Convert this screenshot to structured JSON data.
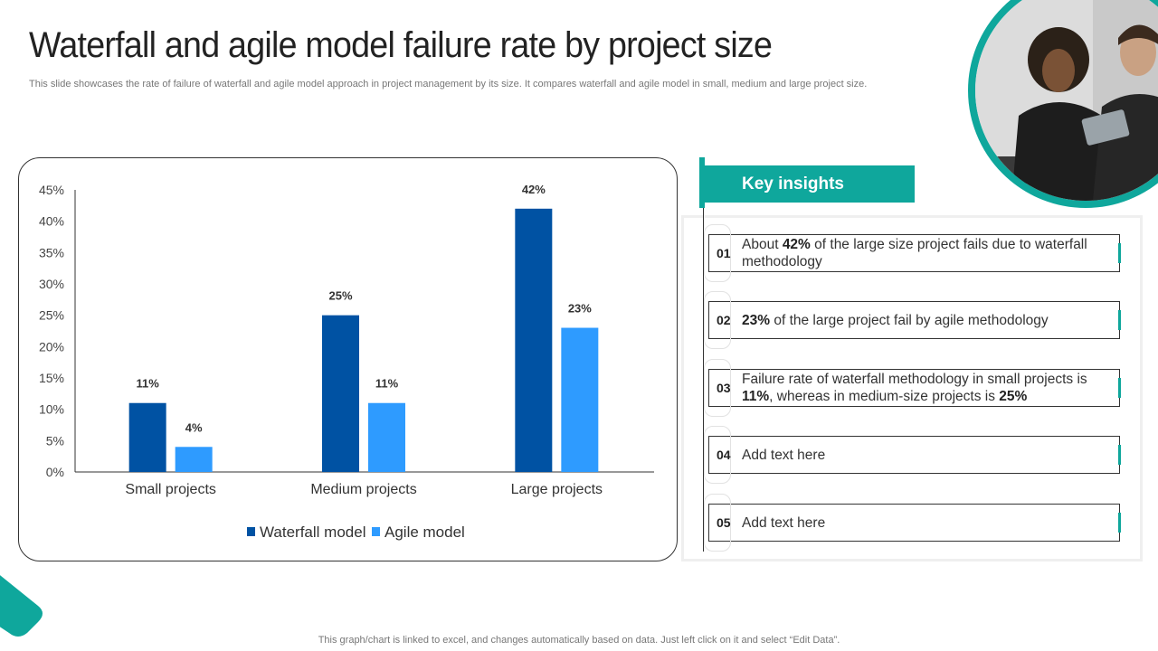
{
  "title": "Waterfall and agile model failure rate by project size",
  "subtitle": "This slide showcases the rate of failure of waterfall and agile model approach in project management by its size. It compares waterfall and agile model in small, medium and large project size.",
  "footer": "This graph/chart is linked to excel,  and changes automatically based on data. Just left click on it and select “Edit Data”.",
  "colors": {
    "accent": "#0fa79c",
    "waterfall": "#0052a3",
    "agile": "#2e9bff"
  },
  "chart_data": {
    "type": "bar",
    "title": "",
    "xlabel": "",
    "ylabel": "",
    "categories": [
      "Small projects",
      "Medium projects",
      "Large projects"
    ],
    "series": [
      {
        "name": "Waterfall model",
        "values": [
          11,
          25,
          42
        ],
        "labels": [
          "11%",
          "25%",
          "42%"
        ]
      },
      {
        "name": "Agile model",
        "values": [
          4,
          11,
          23
        ],
        "labels": [
          "4%",
          "11%",
          "23%"
        ]
      }
    ],
    "ylim": [
      0,
      45
    ],
    "yticks": [
      "0%",
      "5%",
      "10%",
      "15%",
      "20%",
      "25%",
      "30%",
      "35%",
      "40%",
      "45%"
    ],
    "legend": "bottom",
    "grid": false
  },
  "insights": {
    "header": "Key insights",
    "items": [
      {
        "num": "01",
        "parts": [
          [
            "About ",
            false
          ],
          [
            "42%",
            true
          ],
          [
            " of the large size project fails due to waterfall methodology",
            false
          ]
        ]
      },
      {
        "num": "02",
        "parts": [
          [
            "23%",
            true
          ],
          [
            " of the large project fail by agile methodology",
            false
          ]
        ]
      },
      {
        "num": "03",
        "parts": [
          [
            "Failure rate of waterfall methodology in small projects is ",
            false
          ],
          [
            "11%",
            true
          ],
          [
            ", whereas in medium-size projects is ",
            false
          ],
          [
            "25%",
            true
          ]
        ]
      },
      {
        "num": "04",
        "parts": [
          [
            "Add text here",
            false
          ]
        ]
      },
      {
        "num": "05",
        "parts": [
          [
            "Add text here",
            false
          ]
        ]
      }
    ]
  }
}
